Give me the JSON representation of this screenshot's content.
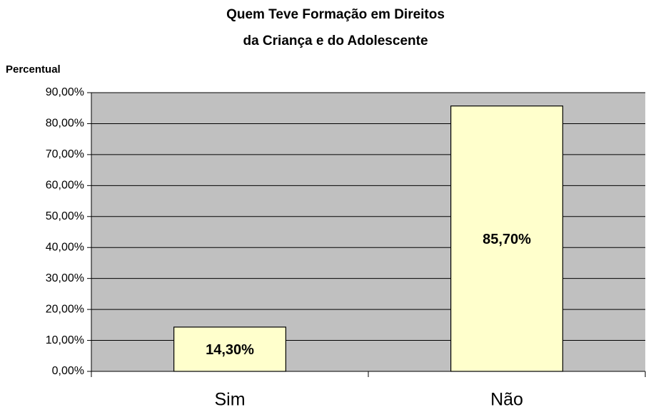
{
  "chart_data": {
    "type": "bar",
    "title": [
      "Quem Teve Formação em Direitos",
      "da Criança e do Adolescente"
    ],
    "y_label": "Percentual",
    "categories": [
      "Sim",
      "Não"
    ],
    "values": [
      14.3,
      85.7
    ],
    "value_labels": [
      "14,30%",
      "85,70%"
    ],
    "color": "#ffffcc",
    "plot_background": "#c0c0c0",
    "ylim": [
      0,
      90
    ],
    "yticks": [
      {
        "value": 0,
        "label": "0,00%"
      },
      {
        "value": 10,
        "label": "10,00%"
      },
      {
        "value": 20,
        "label": "20,00%"
      },
      {
        "value": 30,
        "label": "30,00%"
      },
      {
        "value": 40,
        "label": "40,00%"
      },
      {
        "value": 50,
        "label": "50,00%"
      },
      {
        "value": 60,
        "label": "60,00%"
      },
      {
        "value": 70,
        "label": "70,00%"
      },
      {
        "value": 80,
        "label": "80,00%"
      },
      {
        "value": 90,
        "label": "90,00%"
      }
    ],
    "grid": true
  }
}
